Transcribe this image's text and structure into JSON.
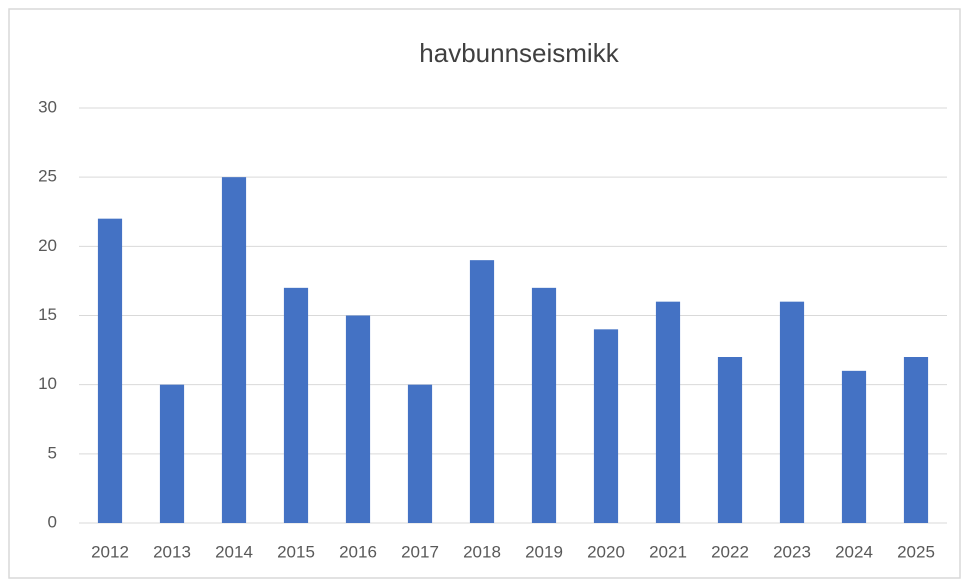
{
  "chart_data": {
    "type": "bar",
    "title": "havbunnseismikk",
    "categories": [
      "2012",
      "2013",
      "2014",
      "2015",
      "2016",
      "2017",
      "2018",
      "2019",
      "2020",
      "2021",
      "2022",
      "2023",
      "2024",
      "2025"
    ],
    "values": [
      22,
      10,
      25,
      17,
      15,
      10,
      19,
      17,
      14,
      16,
      12,
      16,
      11,
      12
    ],
    "color": "#4472c4",
    "ylim": [
      0,
      30
    ],
    "yticks": [
      0,
      5,
      10,
      15,
      20,
      25,
      30
    ],
    "grid": true
  }
}
